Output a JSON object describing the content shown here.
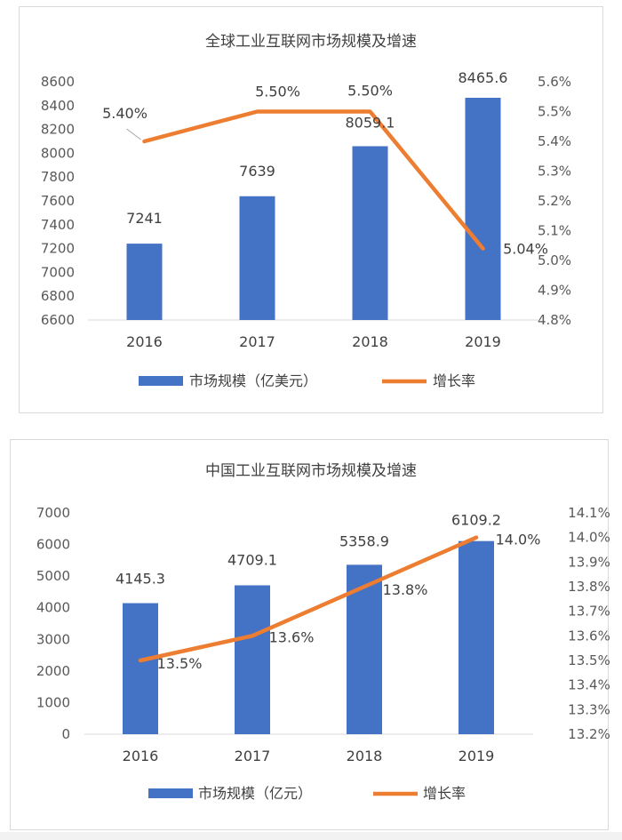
{
  "chart_data": [
    {
      "type": "bar+line",
      "title": "全球工业互联网市场规模及增速",
      "categories": [
        "2016",
        "2017",
        "2018",
        "2019"
      ],
      "series": [
        {
          "name": "市场规模（亿美元）",
          "kind": "bar",
          "axis": "left",
          "values": [
            7241,
            7639,
            8059.1,
            8465.6
          ],
          "labels": [
            "7241",
            "7639",
            "8059.1",
            "8465.6"
          ],
          "color": "#4472c4"
        },
        {
          "name": "增长率",
          "kind": "line",
          "axis": "right",
          "values": [
            5.4,
            5.5,
            5.5,
            5.04
          ],
          "labels": [
            "5.40%",
            "5.50%",
            "5.50%",
            "5.04%"
          ],
          "color": "#ed7d31"
        }
      ],
      "left_axis": {
        "min": 6600,
        "max": 8600,
        "step": 200,
        "tick_labels": [
          "6600",
          "6800",
          "7000",
          "7200",
          "7400",
          "7600",
          "7800",
          "8000",
          "8200",
          "8400",
          "8600"
        ]
      },
      "right_axis": {
        "min": 4.8,
        "max": 5.6,
        "step": 0.1,
        "tick_labels": [
          "4.8%",
          "4.9%",
          "5.0%",
          "5.1%",
          "5.2%",
          "5.3%",
          "5.4%",
          "5.5%",
          "5.6%"
        ]
      },
      "legend": [
        "市场规模（亿美元）",
        "增长率"
      ],
      "legend_position": "bottom"
    },
    {
      "type": "bar+line",
      "title": "中国工业互联网市场规模及增速",
      "categories": [
        "2016",
        "2017",
        "2018",
        "2019"
      ],
      "series": [
        {
          "name": "市场规模（亿元）",
          "kind": "bar",
          "axis": "left",
          "values": [
            4145.3,
            4709.1,
            5358.9,
            6109.2
          ],
          "labels": [
            "4145.3",
            "4709.1",
            "5358.9",
            "6109.2"
          ],
          "color": "#4472c4"
        },
        {
          "name": "增长率",
          "kind": "line",
          "axis": "right",
          "values": [
            13.5,
            13.6,
            13.8,
            14.0
          ],
          "labels": [
            "13.5%",
            "13.6%",
            "13.8%",
            "14.0%"
          ],
          "color": "#ed7d31"
        }
      ],
      "left_axis": {
        "min": 0,
        "max": 7000,
        "step": 1000,
        "tick_labels": [
          "0",
          "1000",
          "2000",
          "3000",
          "4000",
          "5000",
          "6000",
          "7000"
        ]
      },
      "right_axis": {
        "min": 13.2,
        "max": 14.1,
        "step": 0.1,
        "tick_labels": [
          "13.2%",
          "13.3%",
          "13.4%",
          "13.5%",
          "13.6%",
          "13.7%",
          "13.8%",
          "13.9%",
          "14.0%",
          "14.1%"
        ]
      },
      "legend": [
        "市场规模（亿元）",
        "增长率"
      ],
      "legend_position": "bottom"
    }
  ]
}
